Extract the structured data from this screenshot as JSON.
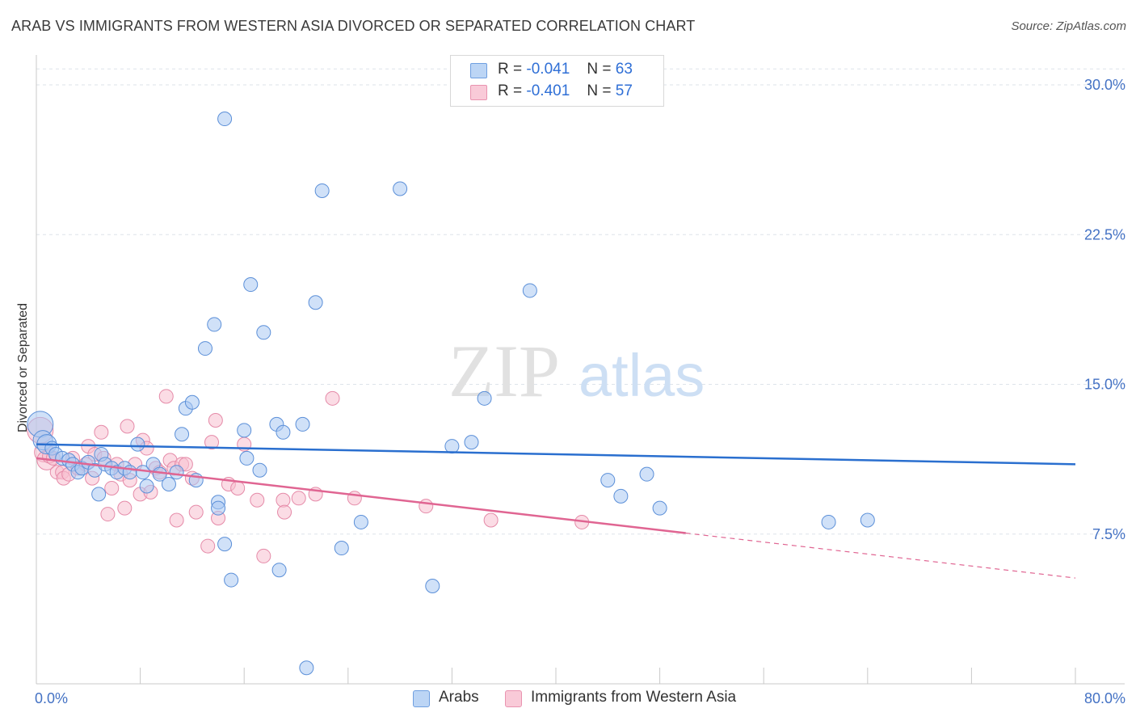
{
  "header": {
    "title": "ARAB VS IMMIGRANTS FROM WESTERN ASIA DIVORCED OR SEPARATED CORRELATION CHART",
    "source": "Source: ZipAtlas.com"
  },
  "watermark": {
    "zip": "ZIP",
    "atlas": "atlas"
  },
  "legend": {
    "arabs": {
      "r_label": "R =",
      "r_value": "-0.041",
      "n_label": "N =",
      "n_value": "63"
    },
    "immigrants": {
      "r_label": "R =",
      "r_value": "-0.401",
      "n_label": "N =",
      "n_value": "57"
    }
  },
  "bottom_legend": {
    "arabs": "Arabs",
    "immigrants": "Immigrants from Western Asia"
  },
  "colors": {
    "arabs_fill": "#a9c8f2",
    "arabs_stroke": "#5b8fd8",
    "arabs_line": "#2a6fcf",
    "imm_fill": "#f7bfd0",
    "imm_stroke": "#e58aa8",
    "imm_line": "#e06592",
    "grid": "#dde3ea",
    "axis_text": "#4472c4"
  },
  "chart_data": {
    "type": "scatter",
    "title": "ARAB VS IMMIGRANTS FROM WESTERN ASIA DIVORCED OR SEPARATED CORRELATION CHART",
    "xlabel": "",
    "ylabel": "Divorced or Separated",
    "xlim": [
      0,
      80
    ],
    "ylim": [
      0,
      31.5
    ],
    "x_tick_labels": [
      "0.0%",
      "80.0%"
    ],
    "y_ticks": [
      7.5,
      15.0,
      22.5,
      30.0
    ],
    "y_tick_labels": [
      "7.5%",
      "15.0%",
      "22.5%",
      "30.0%"
    ],
    "grid": true,
    "legend_position": "top-center",
    "series": [
      {
        "name": "Arabs",
        "R": -0.041,
        "N": 63,
        "trend": {
          "x": [
            0,
            80
          ],
          "y": [
            12.0,
            11.0
          ],
          "dashed_from": null
        },
        "points": [
          [
            0.3,
            13.0
          ],
          [
            0.5,
            12.2
          ],
          [
            0.8,
            12.0
          ],
          [
            1.2,
            11.8
          ],
          [
            1.5,
            11.5
          ],
          [
            2.0,
            11.3
          ],
          [
            2.5,
            11.2
          ],
          [
            2.8,
            11.0
          ],
          [
            3.2,
            10.6
          ],
          [
            3.5,
            10.8
          ],
          [
            4.0,
            11.1
          ],
          [
            4.5,
            10.7
          ],
          [
            5.0,
            11.5
          ],
          [
            5.3,
            11.0
          ],
          [
            5.8,
            10.8
          ],
          [
            6.2,
            10.6
          ],
          [
            6.8,
            10.8
          ],
          [
            7.2,
            10.6
          ],
          [
            7.8,
            12.0
          ],
          [
            8.2,
            10.6
          ],
          [
            9.0,
            11.0
          ],
          [
            9.5,
            10.5
          ],
          [
            10.2,
            10.0
          ],
          [
            10.8,
            10.6
          ],
          [
            11.2,
            12.5
          ],
          [
            11.5,
            13.8
          ],
          [
            12.0,
            14.1
          ],
          [
            4.8,
            9.5
          ],
          [
            8.5,
            9.9
          ],
          [
            12.3,
            10.2
          ],
          [
            13.0,
            16.8
          ],
          [
            13.7,
            18.0
          ],
          [
            14.0,
            9.1
          ],
          [
            14.0,
            8.8
          ],
          [
            14.5,
            7.0
          ],
          [
            14.5,
            28.3
          ],
          [
            15.0,
            5.2
          ],
          [
            16.0,
            12.7
          ],
          [
            16.2,
            11.3
          ],
          [
            16.5,
            20.0
          ],
          [
            17.2,
            10.7
          ],
          [
            17.5,
            17.6
          ],
          [
            18.5,
            13.0
          ],
          [
            18.7,
            5.7
          ],
          [
            19.0,
            12.6
          ],
          [
            20.5,
            13.0
          ],
          [
            20.8,
            0.8
          ],
          [
            21.5,
            19.1
          ],
          [
            22.0,
            24.7
          ],
          [
            23.5,
            6.8
          ],
          [
            25.0,
            8.1
          ],
          [
            28.0,
            24.8
          ],
          [
            30.5,
            4.9
          ],
          [
            32.0,
            11.9
          ],
          [
            33.5,
            12.1
          ],
          [
            34.5,
            14.3
          ],
          [
            38.0,
            19.7
          ],
          [
            44.0,
            10.2
          ],
          [
            45.0,
            9.4
          ],
          [
            47.0,
            10.5
          ],
          [
            48.0,
            8.8
          ],
          [
            61.0,
            8.1
          ],
          [
            64.0,
            8.2
          ]
        ]
      },
      {
        "name": "Immigrants from Western Asia",
        "R": -0.401,
        "N": 57,
        "trend": {
          "x": [
            0,
            80
          ],
          "y": [
            11.3,
            5.3
          ],
          "dashed_from": 50
        },
        "points": [
          [
            0.3,
            12.7
          ],
          [
            0.6,
            11.6
          ],
          [
            0.8,
            11.2
          ],
          [
            1.0,
            11.4
          ],
          [
            1.3,
            11.3
          ],
          [
            1.6,
            10.6
          ],
          [
            2.0,
            10.6
          ],
          [
            2.1,
            10.3
          ],
          [
            2.5,
            10.5
          ],
          [
            2.8,
            11.3
          ],
          [
            3.2,
            10.8
          ],
          [
            3.8,
            11.0
          ],
          [
            4.0,
            11.9
          ],
          [
            4.3,
            10.3
          ],
          [
            4.5,
            11.5
          ],
          [
            5.0,
            12.6
          ],
          [
            5.2,
            11.3
          ],
          [
            5.5,
            8.5
          ],
          [
            5.8,
            9.8
          ],
          [
            6.2,
            11.0
          ],
          [
            6.5,
            10.5
          ],
          [
            6.8,
            8.8
          ],
          [
            7.0,
            12.9
          ],
          [
            7.2,
            10.2
          ],
          [
            7.6,
            11.0
          ],
          [
            8.0,
            9.5
          ],
          [
            8.2,
            12.2
          ],
          [
            8.5,
            11.8
          ],
          [
            8.8,
            9.6
          ],
          [
            9.2,
            10.8
          ],
          [
            9.5,
            10.6
          ],
          [
            10.0,
            14.4
          ],
          [
            10.3,
            11.2
          ],
          [
            10.6,
            10.8
          ],
          [
            10.8,
            8.2
          ],
          [
            11.2,
            11.0
          ],
          [
            11.5,
            11.0
          ],
          [
            12.0,
            10.3
          ],
          [
            12.3,
            8.6
          ],
          [
            13.2,
            6.9
          ],
          [
            13.5,
            12.1
          ],
          [
            13.8,
            13.2
          ],
          [
            14.0,
            8.3
          ],
          [
            14.8,
            10.0
          ],
          [
            15.5,
            9.8
          ],
          [
            16.0,
            12.0
          ],
          [
            17.0,
            9.2
          ],
          [
            17.5,
            6.4
          ],
          [
            19.0,
            9.2
          ],
          [
            19.1,
            8.6
          ],
          [
            20.2,
            9.3
          ],
          [
            21.5,
            9.5
          ],
          [
            22.8,
            14.3
          ],
          [
            24.5,
            9.3
          ],
          [
            30.0,
            8.9
          ],
          [
            35.0,
            8.2
          ],
          [
            42.0,
            8.1
          ]
        ]
      }
    ]
  }
}
